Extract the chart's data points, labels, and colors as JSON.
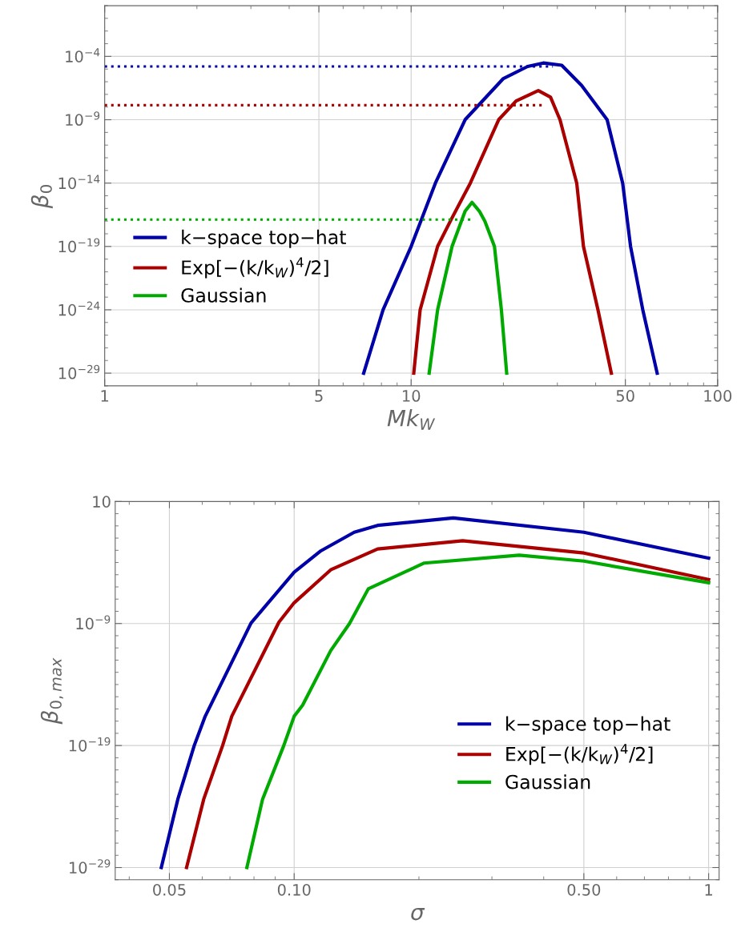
{
  "chart_data": [
    {
      "type": "line",
      "xlabel": "Mk$_{W}$",
      "ylabel": "β$_{0}$",
      "log": "xy",
      "grid": true,
      "legend": "bottom left",
      "xlim": [
        1,
        100
      ],
      "xticks": [
        1,
        5,
        10,
        50,
        100
      ],
      "ylim": [
        1e-30,
        1
      ],
      "yticks": [
        {
          "value": 0.0001,
          "label": "10$^{−4}$"
        },
        {
          "value": 1e-09,
          "label": "10$^{−9}$"
        },
        {
          "value": 1e-14,
          "label": "10$^{−14}$"
        },
        {
          "value": 1e-19,
          "label": "10$^{−19}$"
        },
        {
          "value": 1e-24,
          "label": "10$^{−24}$"
        },
        {
          "value": 1e-29,
          "label": "10$^{−29}$"
        }
      ],
      "series": [
        {
          "name": "k−space top−hat",
          "color": "#0000a8",
          "x": [
            7,
            8.1,
            10,
            12,
            15,
            20,
            24,
            27,
            31,
            36,
            43.6,
            49,
            52,
            57,
            63.5
          ],
          "values": [
            1e-29,
            1e-24,
            1e-19,
            1e-14,
            1e-09,
            1.8e-06,
            1.6e-05,
            3e-05,
            2e-05,
            5e-07,
            1e-09,
            1e-14,
            1e-19,
            1e-24,
            1e-29
          ]
        },
        {
          "name": "Exp[−(k/k$_{W}$)$^{4}$/2]",
          "color": "#aa0000",
          "x": [
            10.2,
            10.7,
            12.2,
            13.5,
            15.6,
            19.3,
            22,
            26,
            28.5,
            30.6,
            34.7,
            36.5,
            40.7,
            45
          ],
          "values": [
            1e-29,
            1e-24,
            1e-19,
            1.3e-17,
            1e-14,
            1e-09,
            3e-08,
            2e-07,
            6e-08,
            1e-09,
            1e-14,
            1e-19,
            1e-24,
            1e-29
          ]
        },
        {
          "name": "Gaussian",
          "color": "#00aa00",
          "x": [
            11.45,
            12.2,
            13.6,
            15,
            15.8,
            16.7,
            17.4,
            18.7,
            19.7,
            20.5
          ],
          "values": [
            1e-29,
            1e-24,
            1e-19,
            6e-17,
            3e-16,
            6e-17,
            1e-17,
            1e-19,
            1e-24,
            1e-29
          ]
        },
        {
          "color": "#0000a8",
          "line_style": "dotted",
          "x": [
            1,
            29
          ],
          "values": [
            1.6e-05,
            1.6e-05
          ]
        },
        {
          "color": "#aa0000",
          "line_style": "dotted",
          "x": [
            1,
            27
          ],
          "values": [
            1.4e-08,
            1.4e-08
          ]
        },
        {
          "color": "#00aa00",
          "line_style": "dotted",
          "x": [
            1,
            15.6
          ],
          "values": [
            1.3e-17,
            1.3e-17
          ]
        }
      ]
    },
    {
      "type": "line",
      "xlabel": "σ",
      "ylabel": "β$_{0,max}$",
      "log": "xy",
      "grid": true,
      "legend": "bottom right",
      "xlim": [
        0.037,
        1.06
      ],
      "xticks": [
        {
          "value": 0.05,
          "label": "0.05"
        },
        {
          "value": 0.1,
          "label": "0.10"
        },
        {
          "value": 0.5,
          "label": "0.50"
        },
        1
      ],
      "ylim": [
        1e-30,
        10
      ],
      "yticks": [
        10,
        {
          "value": 1e-09,
          "label": "10$^{−9}$"
        },
        {
          "value": 1e-19,
          "label": "10$^{−19}$"
        },
        {
          "value": 1e-29,
          "label": "10$^{−29}$"
        }
      ],
      "series": [
        {
          "name": "k−space top−hat",
          "color": "#0000a8",
          "x": [
            0.0478,
            0.0524,
            0.0574,
            0.061,
            0.0787,
            0.1,
            0.116,
            0.1396,
            0.159,
            0.242,
            0.5,
            1
          ],
          "values": [
            1e-29,
            4e-24,
            1e-19,
            2.5e-17,
            1.1e-09,
            1.6e-05,
            0.0009,
            0.03,
            0.11,
            0.45,
            0.03,
            0.00023
          ]
        },
        {
          "name": "Exp[−(k/k$_{W}$)$^{4}$/2]",
          "color": "#aa0000",
          "x": [
            0.055,
            0.0605,
            0.0672,
            0.0707,
            0.0919,
            0.1,
            0.1225,
            0.159,
            0.255,
            0.5,
            1
          ],
          "values": [
            1e-29,
            4e-24,
            1e-19,
            2.5e-17,
            1.3e-09,
            5e-08,
            2.5e-05,
            0.0013,
            0.006,
            0.0006,
            4e-06
          ]
        },
        {
          "name": "Gaussian",
          "color": "#00aa00",
          "x": [
            0.0769,
            0.0839,
            0.0944,
            0.1,
            0.1048,
            0.1225,
            0.136,
            0.151,
            0.206,
            0.349,
            0.5,
            1
          ],
          "values": [
            1e-29,
            4e-24,
            1e-19,
            2.5e-17,
            2e-16,
            6e-12,
            1e-09,
            7e-07,
            9e-05,
            0.0004,
            0.00013,
            2.2e-06
          ]
        }
      ]
    }
  ]
}
